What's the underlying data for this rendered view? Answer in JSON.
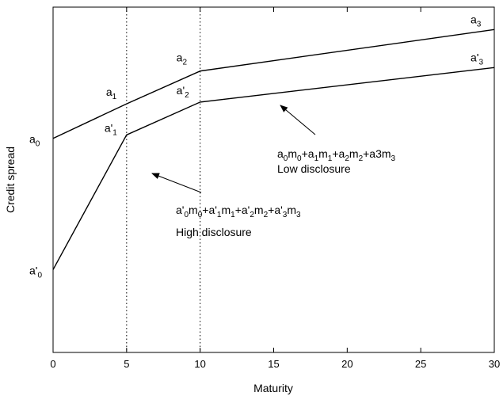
{
  "chart_data": {
    "type": "line",
    "xlabel": "Maturity",
    "ylabel": "Credit spread",
    "xlim": [
      0,
      30
    ],
    "x_ticks": [
      "0",
      "5",
      "10",
      "15",
      "20",
      "25",
      "30"
    ],
    "y_ticks_shown": false,
    "grid": false,
    "vertical_reference_lines": [
      5,
      10
    ],
    "series": [
      {
        "name": "Low disclosure",
        "x": [
          0,
          5,
          10,
          30
        ],
        "y": [
          0.62,
          0.72,
          0.815,
          0.935
        ],
        "point_labels": [
          {
            "base": "a",
            "sub": "0"
          },
          {
            "base": "a",
            "sub": "1"
          },
          {
            "base": "a",
            "sub": "2"
          },
          {
            "base": "a",
            "sub": "3"
          }
        ],
        "formula": "a0m0+a1m1+a2m2+a3m3"
      },
      {
        "name": "High disclosure",
        "x": [
          0,
          5,
          10,
          30
        ],
        "y": [
          0.24,
          0.63,
          0.725,
          0.825
        ],
        "point_labels": [
          {
            "base": "a'",
            "sub": "0"
          },
          {
            "base": "a'",
            "sub": "1"
          },
          {
            "base": "a'",
            "sub": "2"
          },
          {
            "base": "a'",
            "sub": "3"
          }
        ],
        "formula": "a'0m0+a'1m1+a'2m2+a'3m3"
      }
    ]
  }
}
